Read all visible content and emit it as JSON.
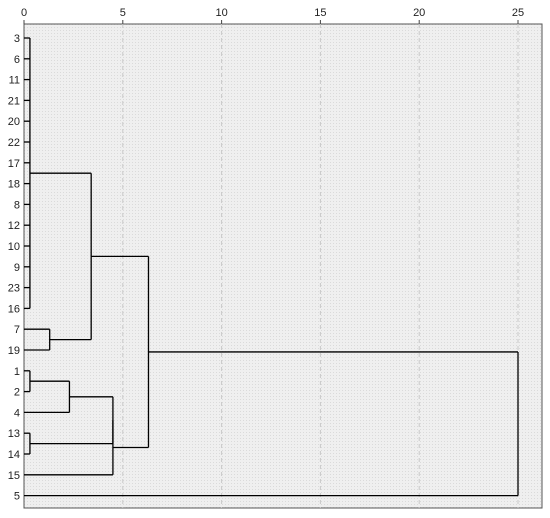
{
  "chart_data": {
    "type": "dendrogram",
    "title": "",
    "xlabel": "",
    "ylabel": "",
    "xlim": [
      0,
      25
    ],
    "x_ticks": [
      0,
      5,
      10,
      15,
      20,
      25
    ],
    "x_tick_labels": [
      "0",
      "5",
      "10",
      "15",
      "20",
      "25"
    ],
    "grid": "vertical dashed",
    "leaf_order": [
      "3",
      "6",
      "11",
      "21",
      "20",
      "22",
      "17",
      "18",
      "8",
      "12",
      "10",
      "9",
      "23",
      "16",
      "7",
      "19",
      "1",
      "2",
      "4",
      "13",
      "14",
      "15",
      "5"
    ],
    "merges": [
      {
        "id": "A",
        "children": [
          "3",
          "6",
          "11",
          "21",
          "20",
          "22",
          "17",
          "18",
          "8",
          "12",
          "10",
          "9",
          "23",
          "16"
        ],
        "height": 0.3
      },
      {
        "id": "B",
        "children": [
          "7",
          "19"
        ],
        "height": 1.3
      },
      {
        "id": "C",
        "children": [
          "1",
          "2"
        ],
        "height": 0.3
      },
      {
        "id": "D",
        "children": [
          "13",
          "14"
        ],
        "height": 0.3
      },
      {
        "id": "E",
        "children": [
          "C",
          "4"
        ],
        "height": 2.3
      },
      {
        "id": "F",
        "children": [
          "E",
          "D"
        ],
        "height": 4.5
      },
      {
        "id": "G",
        "children": [
          "F",
          "15"
        ],
        "height": 4.5
      },
      {
        "id": "H",
        "children": [
          "A",
          "B"
        ],
        "height": 3.4
      },
      {
        "id": "I",
        "children": [
          "H",
          "G"
        ],
        "height": 6.3
      },
      {
        "id": "J",
        "children": [
          "I",
          "5"
        ],
        "height": 25
      }
    ]
  },
  "colors": {
    "plot_background": "#efefef",
    "gridline": "#c8c8c8",
    "line": "#000000",
    "text": "#222222"
  }
}
